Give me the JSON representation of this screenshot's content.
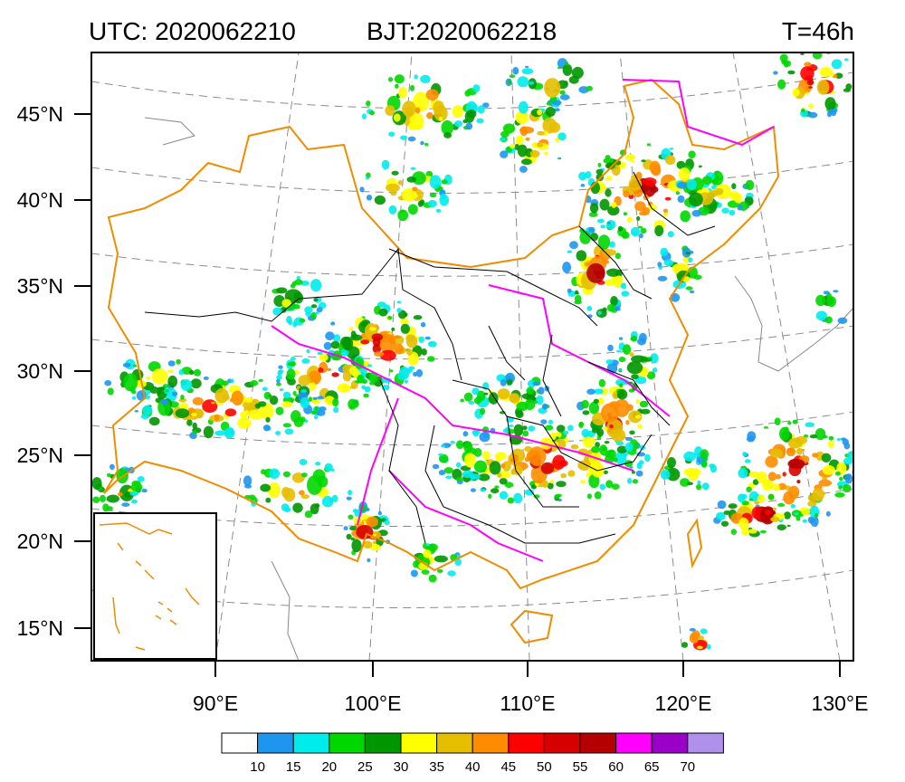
{
  "header": {
    "utc": "UTC: 2020062210",
    "bjt": "BJT:2020062218",
    "lead": "T=46h"
  },
  "map": {
    "lat_ticks": [
      "15°N",
      "20°N",
      "25°N",
      "30°N",
      "35°N",
      "40°N",
      "45°N"
    ],
    "lon_ticks": [
      "90°E",
      "100°E",
      "110°E",
      "120°E",
      "130°E"
    ],
    "boundary_colors": {
      "country": "#f08c00",
      "province": "#000000",
      "river_basin": "#ff00ff",
      "graticule": "#8c8c8c",
      "coast": "#888888"
    }
  },
  "colorbar": {
    "labels": [
      "10",
      "15",
      "20",
      "25",
      "30",
      "35",
      "40",
      "45",
      "50",
      "55",
      "60",
      "65",
      "70"
    ],
    "colors": [
      "#ffffff",
      "#1e96f0",
      "#00ebeb",
      "#00d700",
      "#009600",
      "#ffff00",
      "#e6be00",
      "#ff8c00",
      "#ff0000",
      "#d70000",
      "#b40000",
      "#ff00ff",
      "#9b00c8",
      "#af91eb"
    ]
  }
}
